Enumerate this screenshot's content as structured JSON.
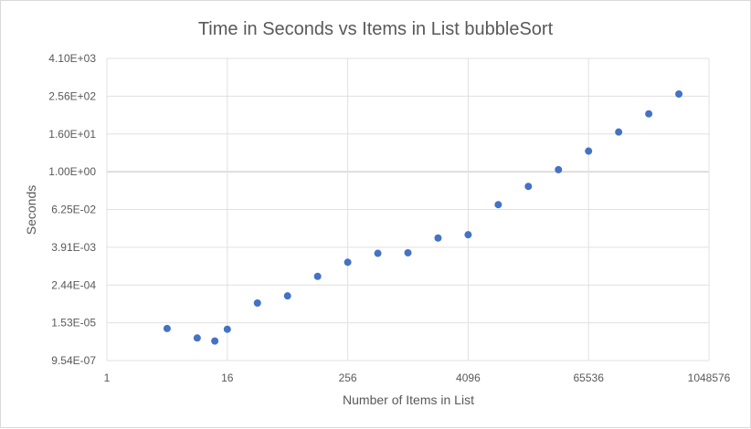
{
  "chart_data": {
    "type": "scatter",
    "title": "Time in Seconds vs Items in List bubbleSort",
    "xlabel": "Number of Items in List",
    "ylabel": "Seconds",
    "x_scale": "log2",
    "y_scale": "log4",
    "xlim": [
      1,
      1048576
    ],
    "ylim": [
      9.54e-07,
      4096
    ],
    "x_ticks": [
      "1",
      "16",
      "256",
      "4096",
      "65536",
      "1048576"
    ],
    "x_tick_values": [
      1,
      16,
      256,
      4096,
      65536,
      1048576
    ],
    "y_ticks": [
      "9.54E-07",
      "1.53E-05",
      "2.44E-04",
      "3.91E-03",
      "6.25E-02",
      "1.00E+00",
      "1.60E+01",
      "2.56E+02",
      "4.10E+03"
    ],
    "y_tick_values": [
      9.54e-07,
      1.53e-05,
      0.000244,
      0.00391,
      0.0625,
      1,
      16,
      256,
      4096
    ],
    "grid": true,
    "legend": false,
    "marker_color": "#4472c4",
    "points": [
      {
        "x": 4,
        "y": 1e-05
      },
      {
        "x": 8,
        "y": 5e-06
      },
      {
        "x": 12,
        "y": 4e-06
      },
      {
        "x": 16,
        "y": 9.5e-06
      },
      {
        "x": 32,
        "y": 6.5e-05
      },
      {
        "x": 64,
        "y": 0.00011
      },
      {
        "x": 128,
        "y": 0.00046
      },
      {
        "x": 256,
        "y": 0.0013
      },
      {
        "x": 512,
        "y": 0.0025
      },
      {
        "x": 1024,
        "y": 0.0026
      },
      {
        "x": 2048,
        "y": 0.0077
      },
      {
        "x": 4096,
        "y": 0.0098
      },
      {
        "x": 8192,
        "y": 0.089
      },
      {
        "x": 16384,
        "y": 0.34
      },
      {
        "x": 32768,
        "y": 1.16
      },
      {
        "x": 65536,
        "y": 4.55
      },
      {
        "x": 131072,
        "y": 18.4
      },
      {
        "x": 262144,
        "y": 70
      },
      {
        "x": 524288,
        "y": 300
      }
    ]
  }
}
